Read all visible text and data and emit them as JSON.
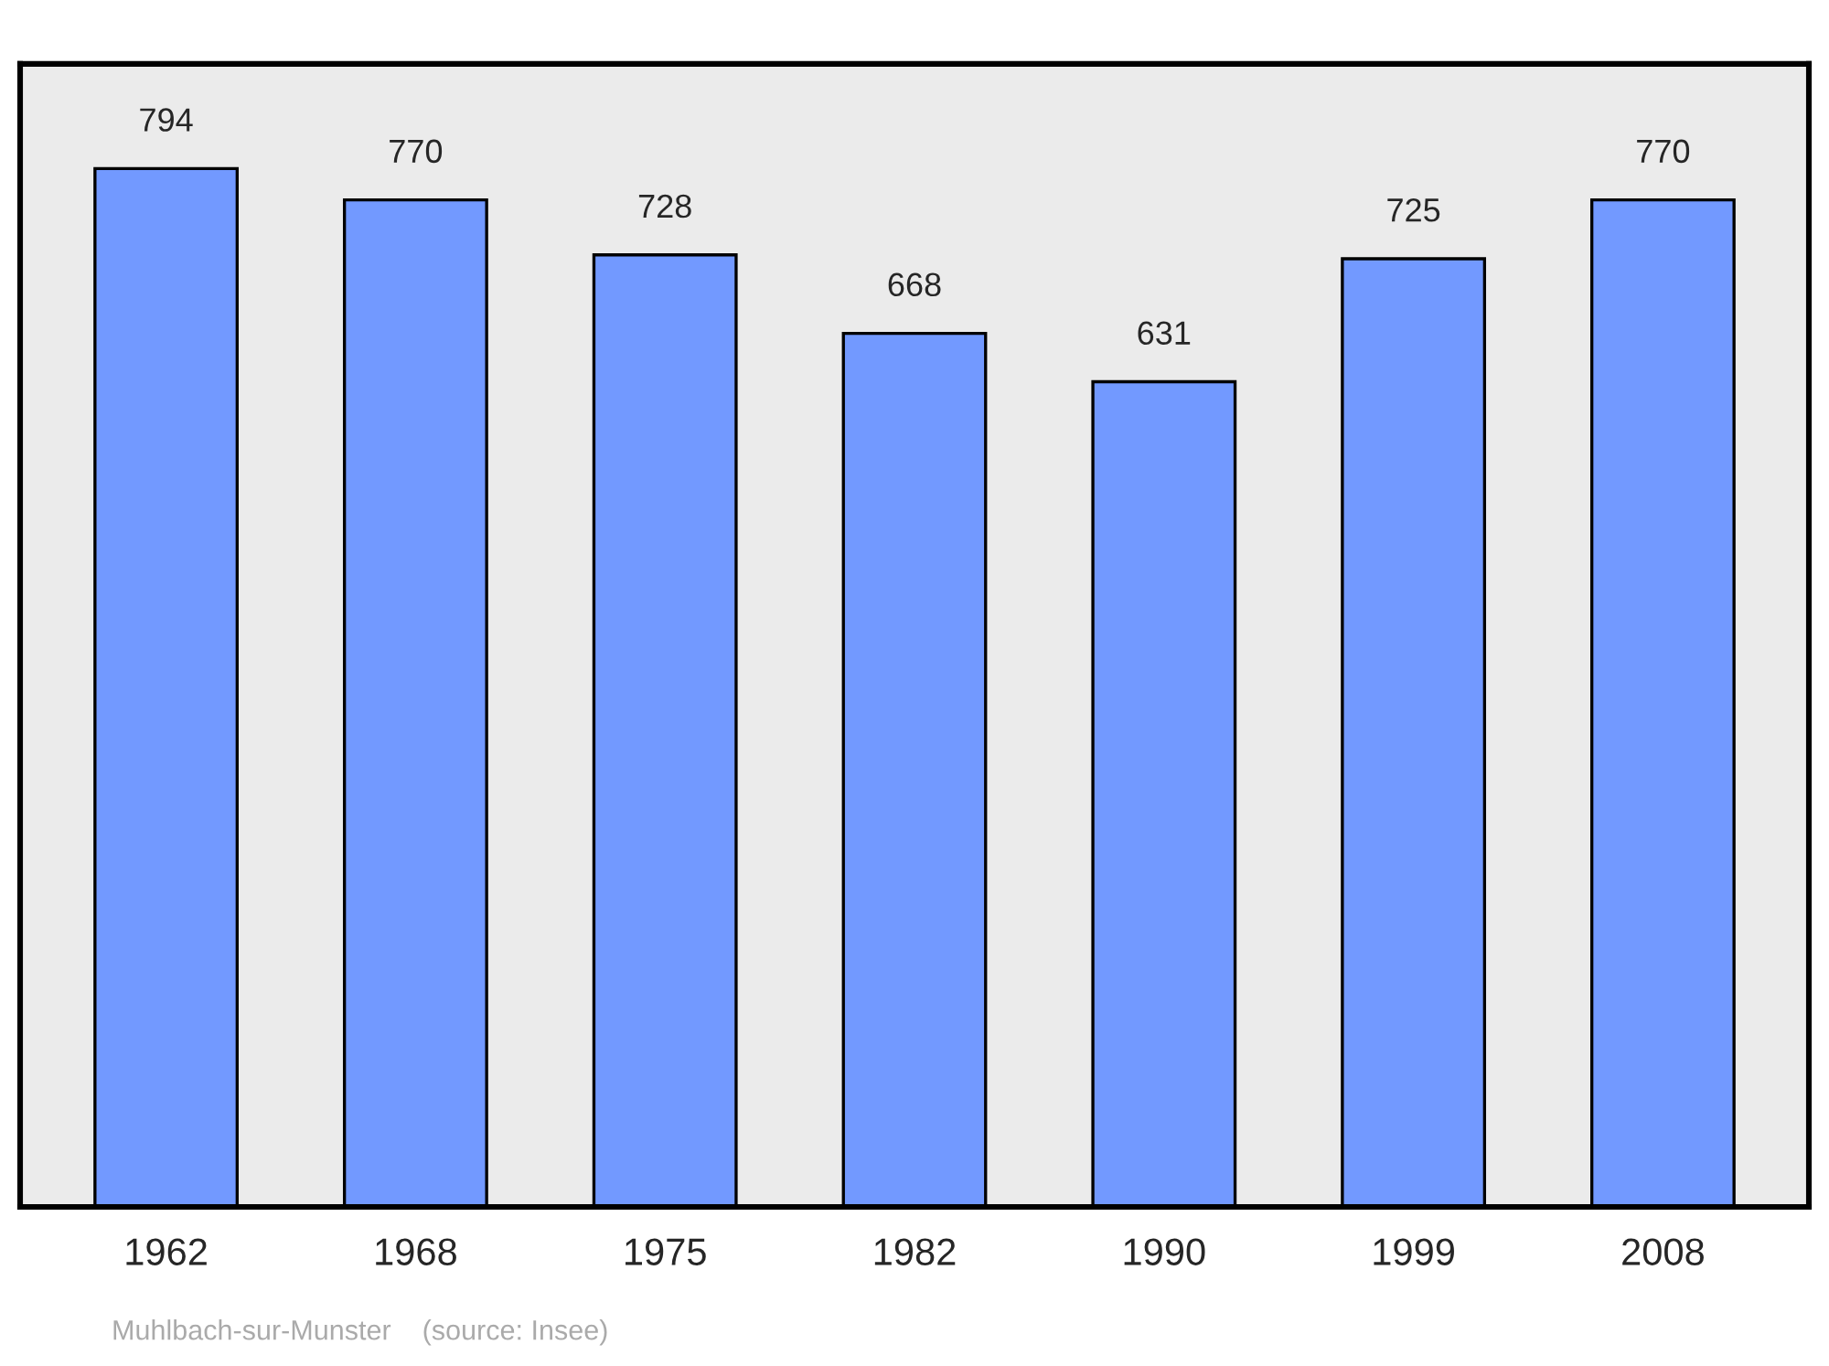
{
  "chart_data": {
    "type": "bar",
    "categories": [
      "1962",
      "1968",
      "1975",
      "1982",
      "1990",
      "1999",
      "2008"
    ],
    "values": [
      794,
      770,
      728,
      668,
      631,
      725,
      770
    ],
    "color": "#7299ff",
    "ylim": [
      0,
      874
    ],
    "tick_labels": "x",
    "data_labels": true,
    "grid": false,
    "legend": false,
    "annotations": [
      "Muhlbach-sur-Munster    (source: Insee)"
    ]
  }
}
